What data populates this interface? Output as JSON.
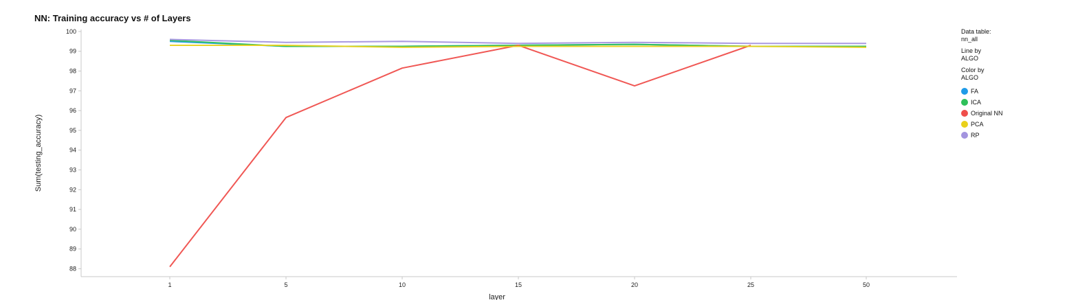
{
  "title": "NN: Training accuracy vs # of Layers",
  "legend": {
    "data_table_label": "Data table:",
    "data_table_value": "nn_all",
    "line_by_label": "Line by",
    "line_by_value": "ALGO",
    "color_by_label": "Color by",
    "color_by_value": "ALGO"
  },
  "chart_data": {
    "type": "line",
    "title": "NN: Training accuracy vs # of Layers",
    "xlabel": "layer",
    "ylabel": "Sum(testing_accuracy)",
    "categories": [
      "1",
      "5",
      "10",
      "15",
      "20",
      "25",
      "50"
    ],
    "ylim": [
      87.6,
      100.1
    ],
    "yticks": [
      88,
      89,
      90,
      91,
      92,
      93,
      94,
      95,
      96,
      97,
      98,
      99,
      100
    ],
    "grid": false,
    "legend_position": "right",
    "series": [
      {
        "name": "FA",
        "color": "#1f9be8",
        "values": [
          99.5,
          99.25,
          99.25,
          99.3,
          99.35,
          99.25,
          99.25
        ]
      },
      {
        "name": "ICA",
        "color": "#2ec05a",
        "values": [
          99.55,
          99.25,
          99.25,
          99.3,
          99.35,
          99.25,
          99.25
        ]
      },
      {
        "name": "Original NN",
        "color": "#ef4e4b",
        "values": [
          88.1,
          95.65,
          98.15,
          99.3,
          97.25,
          99.3,
          null
        ]
      },
      {
        "name": "PCA",
        "color": "#e9d11c",
        "values": [
          99.3,
          99.3,
          99.2,
          99.25,
          99.25,
          99.25,
          99.2
        ]
      },
      {
        "name": "RP",
        "color": "#a394df",
        "values": [
          99.6,
          99.45,
          99.5,
          99.4,
          99.45,
          99.4,
          99.4
        ]
      }
    ]
  }
}
